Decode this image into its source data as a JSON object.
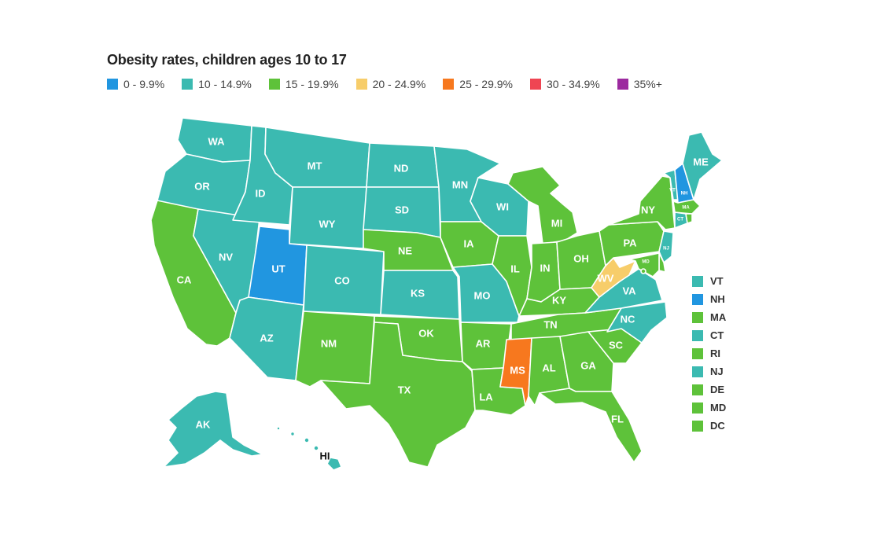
{
  "title": "Obesity rates, children ages 10 to 17",
  "legend": [
    {
      "label": "0 - 9.9%",
      "color": "#2196e0"
    },
    {
      "label": "10 - 14.9%",
      "color": "#3bbab1"
    },
    {
      "label": "15 - 19.9%",
      "color": "#5ec23a"
    },
    {
      "label": "20 - 24.9%",
      "color": "#f7cd6a"
    },
    {
      "label": "25 - 29.9%",
      "color": "#f7781e"
    },
    {
      "label": "30 - 34.9%",
      "color": "#ef4553"
    },
    {
      "label": "35%+",
      "color": "#9c2a9f"
    }
  ],
  "states": {
    "WA": {
      "label": "WA",
      "bin": 1
    },
    "OR": {
      "label": "OR",
      "bin": 1
    },
    "CA": {
      "label": "CA",
      "bin": 2
    },
    "NV": {
      "label": "NV",
      "bin": 1
    },
    "ID": {
      "label": "ID",
      "bin": 1
    },
    "MT": {
      "label": "MT",
      "bin": 1
    },
    "WY": {
      "label": "WY",
      "bin": 1
    },
    "UT": {
      "label": "UT",
      "bin": 0
    },
    "AZ": {
      "label": "AZ",
      "bin": 1
    },
    "CO": {
      "label": "CO",
      "bin": 1
    },
    "NM": {
      "label": "NM",
      "bin": 2
    },
    "ND": {
      "label": "ND",
      "bin": 1
    },
    "SD": {
      "label": "SD",
      "bin": 1
    },
    "NE": {
      "label": "NE",
      "bin": 2
    },
    "KS": {
      "label": "KS",
      "bin": 1
    },
    "OK": {
      "label": "OK",
      "bin": 2
    },
    "TX": {
      "label": "TX",
      "bin": 2
    },
    "MN": {
      "label": "MN",
      "bin": 1
    },
    "IA": {
      "label": "IA",
      "bin": 2
    },
    "MO": {
      "label": "MO",
      "bin": 1
    },
    "AR": {
      "label": "AR",
      "bin": 2
    },
    "LA": {
      "label": "LA",
      "bin": 2
    },
    "WI": {
      "label": "WI",
      "bin": 1
    },
    "IL": {
      "label": "IL",
      "bin": 2
    },
    "MI": {
      "label": "MI",
      "bin": 2
    },
    "IN": {
      "label": "IN",
      "bin": 2
    },
    "OH": {
      "label": "OH",
      "bin": 2
    },
    "KY": {
      "label": "KY",
      "bin": 2
    },
    "TN": {
      "label": "TN",
      "bin": 2
    },
    "MS": {
      "label": "MS",
      "bin": 4
    },
    "AL": {
      "label": "AL",
      "bin": 2
    },
    "GA": {
      "label": "GA",
      "bin": 2
    },
    "FL": {
      "label": "FL",
      "bin": 2
    },
    "SC": {
      "label": "SC",
      "bin": 2
    },
    "NC": {
      "label": "NC",
      "bin": 1
    },
    "VA": {
      "label": "VA",
      "bin": 1
    },
    "WV": {
      "label": "WV",
      "bin": 3
    },
    "PA": {
      "label": "PA",
      "bin": 2
    },
    "NY": {
      "label": "NY",
      "bin": 2
    },
    "ME": {
      "label": "ME",
      "bin": 1
    },
    "NH": {
      "label": "NH",
      "bin": 0
    },
    "VT": {
      "label": "VT",
      "bin": 1
    },
    "MA": {
      "label": "MA",
      "bin": 2
    },
    "CT": {
      "label": "CT",
      "bin": 1
    },
    "RI": {
      "label": "RI",
      "bin": 2
    },
    "NJ": {
      "label": "NJ",
      "bin": 1
    },
    "DE": {
      "label": "DE",
      "bin": 2
    },
    "MD": {
      "label": "MD",
      "bin": 2
    },
    "DC": {
      "label": "DC",
      "bin": 2
    },
    "AK": {
      "label": "AK",
      "bin": 1
    },
    "HI": {
      "label": "HI",
      "bin": 1
    }
  },
  "side_legend": [
    {
      "label": "VT",
      "bin": 1
    },
    {
      "label": "NH",
      "bin": 0
    },
    {
      "label": "MA",
      "bin": 2
    },
    {
      "label": "CT",
      "bin": 1
    },
    {
      "label": "RI",
      "bin": 2
    },
    {
      "label": "NJ",
      "bin": 1
    },
    {
      "label": "DE",
      "bin": 2
    },
    {
      "label": "MD",
      "bin": 2
    },
    {
      "label": "DC",
      "bin": 2
    }
  ]
}
